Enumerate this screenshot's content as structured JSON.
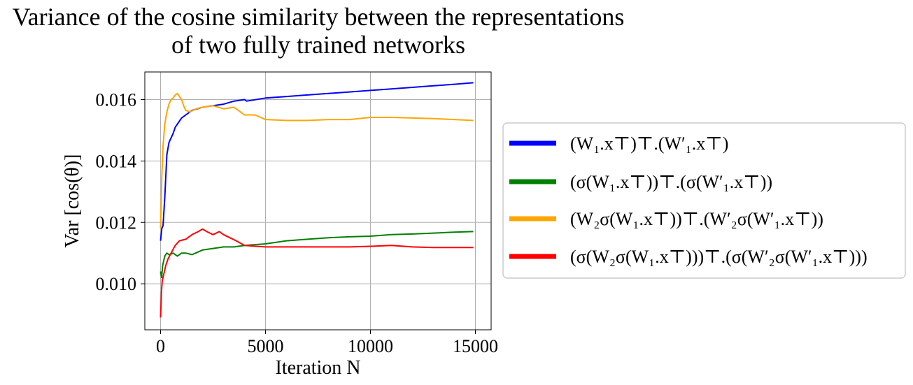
{
  "chart_data": {
    "type": "line",
    "title": [
      "Variance of the cosine similarity between the representations",
      "of  two fully trained networks"
    ],
    "xlabel": "Iteration N",
    "ylabel": "Var [cos(θ)]",
    "xlim": [
      -750,
      15750
    ],
    "ylim": [
      0.0085,
      0.0169
    ],
    "xticks": [
      0,
      5000,
      10000,
      15000
    ],
    "xtick_labels": [
      "0",
      "5000",
      "10000",
      "15000"
    ],
    "yticks": [
      0.01,
      0.012,
      0.014,
      0.016
    ],
    "ytick_labels": [
      "0.010",
      "0.012",
      "0.014",
      "0.016"
    ],
    "grid": true,
    "legend_position": "right",
    "series": [
      {
        "name": "(W₁.x⊤)⊤.(W′₁.x⊤)",
        "color": "#0000ff",
        "x": [
          0,
          60,
          120,
          200,
          300,
          400,
          500,
          600,
          700,
          850,
          1000,
          1200,
          1500,
          2000,
          2500,
          3000,
          3500,
          4000,
          4100,
          5000,
          6000,
          7000,
          8000,
          9000,
          10000,
          11000,
          12000,
          13000,
          14000,
          14900
        ],
        "values": [
          0.0114,
          0.0118,
          0.0119,
          0.0128,
          0.0142,
          0.0146,
          0.01475,
          0.0149,
          0.0151,
          0.01525,
          0.0154,
          0.0155,
          0.01565,
          0.01575,
          0.0158,
          0.01585,
          0.01595,
          0.016,
          0.01595,
          0.01605,
          0.0161,
          0.01615,
          0.0162,
          0.01625,
          0.0163,
          0.01635,
          0.0164,
          0.01645,
          0.0165,
          0.01655
        ]
      },
      {
        "name": "(σ(W₁.x⊤))⊤.(σ(W′₁.x⊤))",
        "color": "#008000",
        "x": [
          0,
          50,
          100,
          200,
          300,
          400,
          600,
          800,
          1000,
          1200,
          1500,
          2000,
          2500,
          3000,
          3500,
          4000,
          5000,
          6000,
          7000,
          8000,
          9000,
          10000,
          11000,
          12000,
          13000,
          14000,
          14900
        ],
        "values": [
          0.0104,
          0.0102,
          0.0106,
          0.0109,
          0.011,
          0.01095,
          0.011,
          0.0109,
          0.011,
          0.011,
          0.01095,
          0.0111,
          0.01115,
          0.0112,
          0.0112,
          0.01125,
          0.0113,
          0.0114,
          0.01145,
          0.0115,
          0.01153,
          0.01155,
          0.0116,
          0.01162,
          0.01165,
          0.01168,
          0.0117
        ]
      },
      {
        "name": "(W₂σ(W₁.x⊤))⊤.(W′₂σ(W′₁.x⊤))",
        "color": "#ffa500",
        "x": [
          0,
          60,
          120,
          200,
          300,
          400,
          500,
          600,
          700,
          800,
          900,
          1000,
          1100,
          1200,
          1400,
          1700,
          2000,
          2500,
          3000,
          3500,
          3800,
          4000,
          4500,
          5000,
          6000,
          7000,
          8000,
          9000,
          10000,
          11000,
          12000,
          13000,
          14000,
          14900
        ],
        "values": [
          0.0118,
          0.0135,
          0.0145,
          0.0152,
          0.0156,
          0.01585,
          0.016,
          0.01605,
          0.01615,
          0.0162,
          0.0161,
          0.016,
          0.0158,
          0.01565,
          0.0156,
          0.0157,
          0.01575,
          0.0158,
          0.0157,
          0.01575,
          0.0156,
          0.0155,
          0.0155,
          0.01535,
          0.01532,
          0.01532,
          0.01535,
          0.01535,
          0.01542,
          0.01542,
          0.0154,
          0.01538,
          0.01535,
          0.01532
        ]
      },
      {
        "name": "(σ(W₂σ(W₁.x⊤)))⊤.(σ(W′₂σ(W′₁.x⊤)))",
        "color": "#ff0000",
        "x": [
          0,
          40,
          80,
          150,
          250,
          350,
          500,
          700,
          900,
          1200,
          1500,
          1800,
          2000,
          2200,
          2500,
          2800,
          3000,
          3300,
          3600,
          4000,
          5000,
          6000,
          7000,
          8000,
          9000,
          10000,
          11000,
          12000,
          13000,
          14000,
          14900
        ],
        "values": [
          0.0089,
          0.0097,
          0.0101,
          0.0103,
          0.0106,
          0.0108,
          0.011,
          0.01125,
          0.0114,
          0.01145,
          0.0116,
          0.0117,
          0.01178,
          0.0117,
          0.0116,
          0.0117,
          0.0116,
          0.0115,
          0.0114,
          0.01125,
          0.0112,
          0.0112,
          0.0112,
          0.0112,
          0.0112,
          0.01122,
          0.01125,
          0.0112,
          0.01118,
          0.01118,
          0.01118
        ]
      }
    ]
  }
}
